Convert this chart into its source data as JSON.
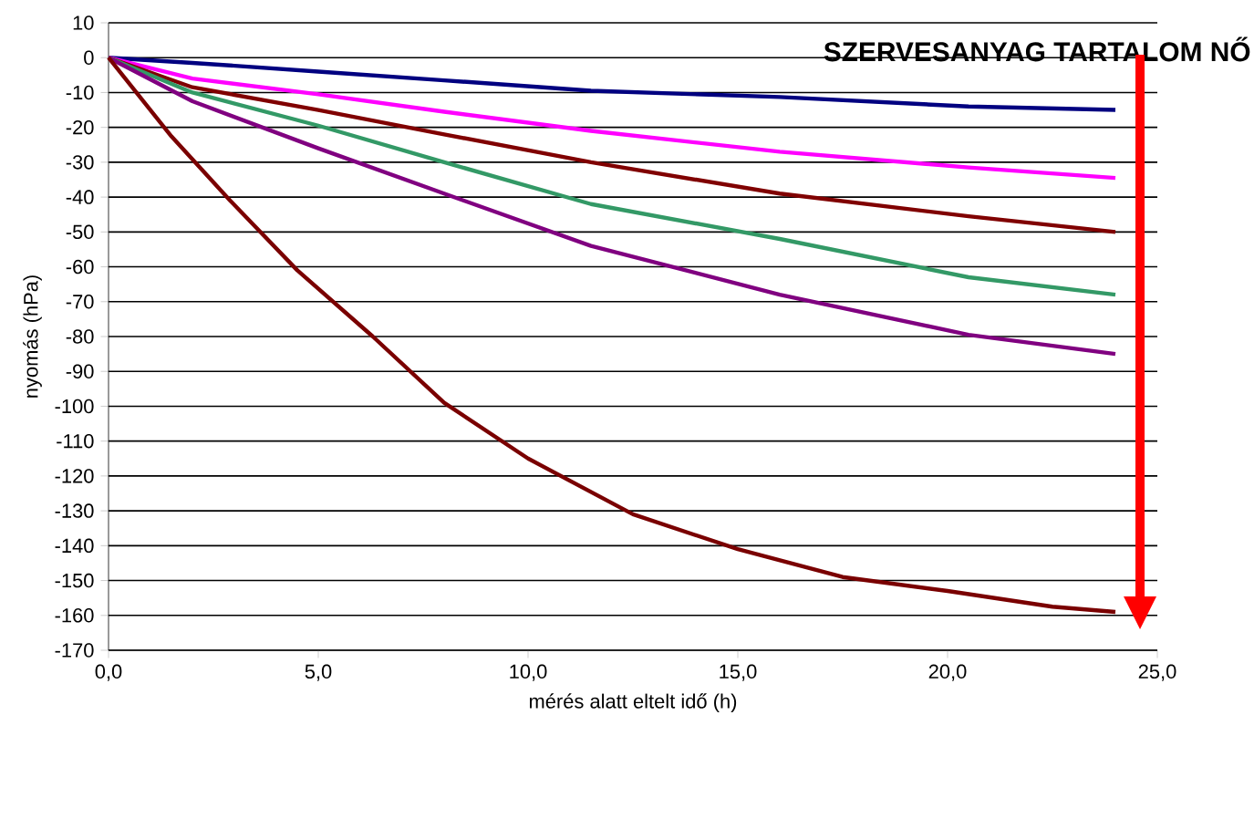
{
  "chart_data": {
    "type": "line",
    "xlabel": "mérés alatt eltelt idő (h)",
    "ylabel": "nyomás (hPa)",
    "annotations": [
      "SZERVESANYAG TARTALOM NŐ"
    ],
    "xlim": [
      0,
      25
    ],
    "xticks": [
      {
        "value": 0,
        "label": "0,0"
      },
      {
        "value": 5,
        "label": "5,0"
      },
      {
        "value": 10,
        "label": "10,0"
      },
      {
        "value": 15,
        "label": "15,0"
      },
      {
        "value": 20,
        "label": "20,0"
      },
      {
        "value": 25,
        "label": "25,0"
      }
    ],
    "ylim": [
      -170,
      10
    ],
    "yticks": [
      -170,
      -160,
      -150,
      -140,
      -130,
      -120,
      -110,
      -100,
      -90,
      -80,
      -70,
      -60,
      -50,
      -40,
      -30,
      -20,
      -10,
      0,
      10
    ],
    "grid": "y",
    "marker": "none",
    "line_style": "solid",
    "x": [
      0,
      2,
      5,
      8,
      11.5,
      16,
      20.5,
      24
    ],
    "series": [
      {
        "color": "#000080",
        "values": [
          0,
          -1.5,
          -4,
          -6.5,
          -9.5,
          -11.3,
          -14,
          -15
        ]
      },
      {
        "color": "#ff00ff",
        "values": [
          0,
          -6,
          -10.5,
          -15.5,
          -21,
          -27,
          -31.5,
          -34.5
        ]
      },
      {
        "color": "#800000",
        "values": [
          0,
          -8.5,
          -15,
          -22,
          -30,
          -39,
          -45.5,
          -50
        ]
      },
      {
        "color": "#339966",
        "values": [
          0,
          -10,
          -19.5,
          -30,
          -42,
          -52,
          -63,
          -68
        ]
      },
      {
        "color": "#800080",
        "values": [
          0,
          -12.5,
          -26,
          -39,
          -54,
          -68,
          -79.5,
          -85
        ]
      },
      {
        "color": "#7a0000",
        "x": [
          0,
          1.5,
          2.9,
          4.5,
          6.3,
          8,
          10,
          12.5,
          15,
          17.5,
          20,
          22.5,
          24
        ],
        "values": [
          0,
          -22.6,
          -41,
          -61,
          -80,
          -99,
          -115,
          -131,
          -141,
          -149,
          -153,
          -157.5,
          -159
        ]
      }
    ]
  }
}
